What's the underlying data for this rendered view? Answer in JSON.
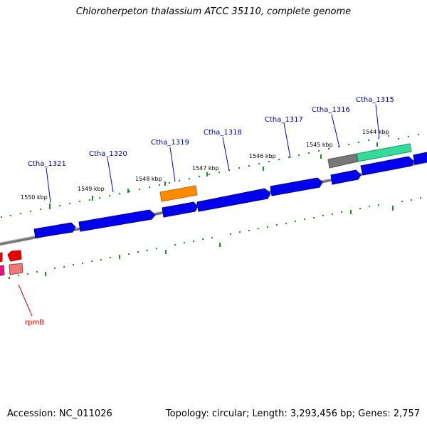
{
  "title": "Chloroherpeton thalassium ATCC 35110, complete genome",
  "footer": {
    "accession": "Accession: NC_011026",
    "stats": "Topology: circular; Length: 3,293,456 bp; Genes: 2,757"
  },
  "gene_labels": {
    "ctha_1315": "Ctha_1315",
    "ctha_1316": "Ctha_1316",
    "ctha_1317": "Ctha_1317",
    "ctha_1318": "Ctha_1318",
    "ctha_1319": "Ctha_1319",
    "ctha_1320": "Ctha_1320",
    "ctha_1321": "Ctha_1321",
    "rpmB": "rpmB"
  },
  "kbp_labels": {
    "k1544": "1544 kbp",
    "k1545": "1545 kbp",
    "k1546": "1546 kbp",
    "k1547": "1547 kbp",
    "k1548": "1548 kbp",
    "k1549": "1549 kbp",
    "k1550": "1550 kbp"
  },
  "colors": {
    "gene_forward": "#0000ee",
    "gene_orange": "#ff8c00",
    "gene_green": "#33dd99",
    "gene_gray": "#777777",
    "gene_red": "#ee0000",
    "gene_pink": "#ee7777",
    "gene_magenta": "#ee1188",
    "backbone": "#888888",
    "tick": "#228b22"
  }
}
